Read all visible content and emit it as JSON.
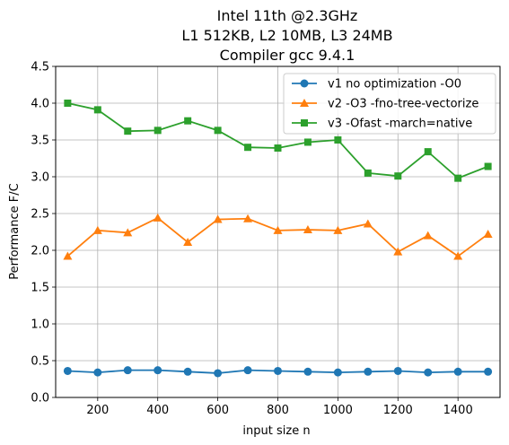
{
  "chart_data": {
    "type": "line",
    "title": [
      "Intel 11th @2.3GHz",
      "L1 512KB, L2 10MB, L3 24MB",
      "Compiler gcc 9.4.1"
    ],
    "xlabel": "input size n",
    "ylabel": "Performance F/C",
    "xlim": [
      60,
      1540
    ],
    "ylim": [
      0,
      4.5
    ],
    "xticks": [
      200,
      400,
      600,
      800,
      1000,
      1200,
      1400
    ],
    "xtick_labels": [
      "200",
      "400",
      "600",
      "800",
      "1000",
      "1200",
      "1400"
    ],
    "yticks": [
      0,
      0.5,
      1,
      1.5,
      2,
      2.5,
      3,
      3.5,
      4,
      4.5
    ],
    "ytick_labels": [
      "0.0",
      "0.5",
      "1.0",
      "1.5",
      "2.0",
      "2.5",
      "3.0",
      "3.5",
      "4.0",
      "4.5"
    ],
    "grid": true,
    "legend_position": "upper right",
    "x": [
      100,
      200,
      300,
      400,
      500,
      600,
      700,
      800,
      900,
      1000,
      1100,
      1200,
      1300,
      1400,
      1500
    ],
    "series": [
      {
        "name": "v1 no optimization -O0",
        "color": "#1f77b4",
        "marker": "circle",
        "values": [
          0.36,
          0.34,
          0.37,
          0.37,
          0.35,
          0.33,
          0.37,
          0.36,
          0.35,
          0.34,
          0.35,
          0.36,
          0.34,
          0.35,
          0.35
        ]
      },
      {
        "name": "v2 -O3 -fno-tree-vectorize",
        "color": "#ff7f0e",
        "marker": "triangle",
        "values": [
          1.92,
          2.27,
          2.24,
          2.44,
          2.11,
          2.42,
          2.43,
          2.27,
          2.28,
          2.27,
          2.36,
          1.98,
          2.2,
          1.92,
          2.22
        ]
      },
      {
        "name": "v3 -Ofast -march=native",
        "color": "#2ca02c",
        "marker": "square",
        "values": [
          4.0,
          3.91,
          3.62,
          3.63,
          3.76,
          3.63,
          3.4,
          3.39,
          3.47,
          3.5,
          3.05,
          3.01,
          3.34,
          2.98,
          3.14
        ]
      }
    ]
  }
}
